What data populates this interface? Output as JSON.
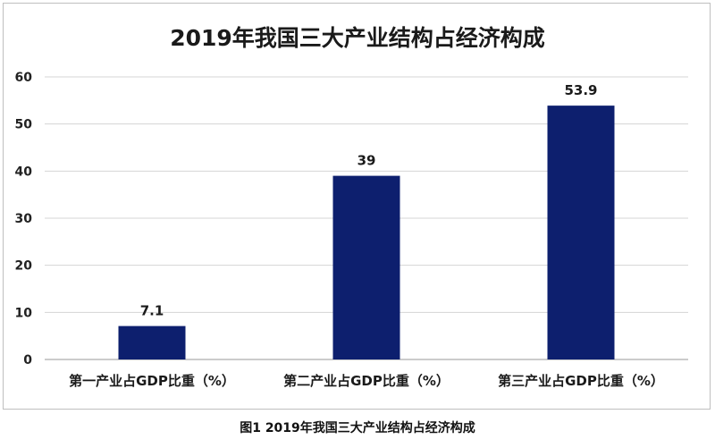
{
  "chart_data": {
    "type": "bar",
    "title": "2019年我国三大产业结构占经济构成",
    "categories": [
      "第一产业占GDP比重（%）",
      "第二产业占GDP比重（%）",
      "第三产业占GDP比重（%）"
    ],
    "values": [
      7.1,
      39,
      53.9
    ],
    "data_labels": [
      "7.1",
      "39",
      "53.9"
    ],
    "xlabel": "",
    "ylabel": "",
    "ylim": [
      0,
      60
    ],
    "yticks": [
      0,
      10,
      20,
      30,
      40,
      50,
      60
    ],
    "grid": true,
    "legend": "none",
    "bar_color": "#0d1f6e"
  },
  "caption": "图1  2019年我国三大产业结构占经济构成"
}
